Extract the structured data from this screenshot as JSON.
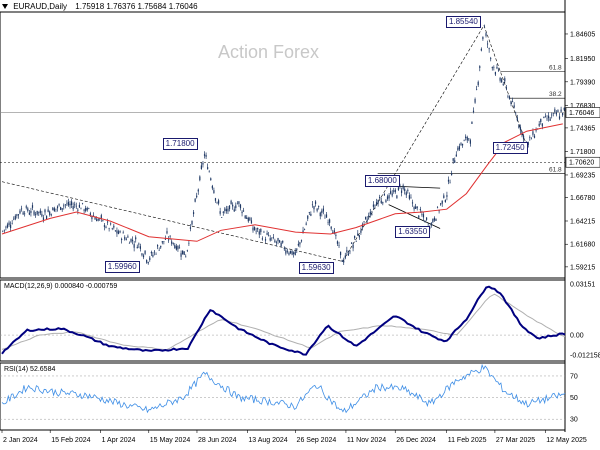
{
  "header": {
    "symbol": "EURAUD,Daily",
    "ohlc": "1.75918 1.76376 1.75684 1.76046"
  },
  "watermark": "Action Forex",
  "colors": {
    "candle": "#1f3864",
    "ma": "#e03131",
    "macd": "#000080",
    "signal": "#b0b0b0",
    "rsi": "#3e8ee6",
    "trend": "#000000"
  },
  "chart_data": [
    {
      "type": "line",
      "panel": "price",
      "ylim": [
        1.58,
        1.87
      ],
      "y_ticks": [
        "1.84605",
        "1.81950",
        "1.79390",
        "1.76830",
        "1.74365",
        "1.71800",
        "1.69235",
        "1.66780",
        "1.64215",
        "1.61680",
        "1.59215"
      ],
      "current_price_label": "1.76046",
      "level_label": "1.70620",
      "fib_labels": [
        "61.8",
        "38.2",
        "61.8"
      ],
      "annotations": [
        {
          "label": "1.85540",
          "date": "2025-03-17",
          "value": 1.8554
        },
        {
          "label": "1.71800",
          "date": "2024-07-05",
          "value": 1.718
        },
        {
          "label": "1.68000",
          "date": "2025-01-02",
          "value": 1.68
        },
        {
          "label": "1.72450",
          "date": "2025-04-25",
          "value": 1.7245
        },
        {
          "label": "1.63550",
          "date": "2025-01-27",
          "value": 1.6355
        },
        {
          "label": "1.59960",
          "date": "2024-05-15",
          "value": 1.5996
        },
        {
          "label": "1.59630",
          "date": "2024-11-08",
          "value": 1.5963
        }
      ],
      "close_path": [
        [
          "2024-01-02",
          1.63
        ],
        [
          "2024-01-20",
          1.655
        ],
        [
          "2024-02-10",
          1.65
        ],
        [
          "2024-02-28",
          1.66
        ],
        [
          "2024-03-15",
          1.658
        ],
        [
          "2024-04-01",
          1.642
        ],
        [
          "2024-04-18",
          1.628
        ],
        [
          "2024-05-05",
          1.618
        ],
        [
          "2024-05-15",
          1.6
        ],
        [
          "2024-06-01",
          1.625
        ],
        [
          "2024-06-18",
          1.605
        ],
        [
          "2024-07-05",
          1.715
        ],
        [
          "2024-07-20",
          1.648
        ],
        [
          "2024-08-05",
          1.662
        ],
        [
          "2024-08-20",
          1.632
        ],
        [
          "2024-09-10",
          1.618
        ],
        [
          "2024-09-26",
          1.605
        ],
        [
          "2024-10-12",
          1.66
        ],
        [
          "2024-10-28",
          1.642
        ],
        [
          "2024-11-08",
          1.598
        ],
        [
          "2024-11-25",
          1.632
        ],
        [
          "2024-12-10",
          1.665
        ],
        [
          "2024-12-26",
          1.672
        ],
        [
          "2025-01-02",
          1.68
        ],
        [
          "2025-01-14",
          1.655
        ],
        [
          "2025-01-27",
          1.637
        ],
        [
          "2025-02-11",
          1.672
        ],
        [
          "2025-02-20",
          1.72
        ],
        [
          "2025-03-05",
          1.735
        ],
        [
          "2025-03-12",
          1.8
        ],
        [
          "2025-03-17",
          1.855
        ],
        [
          "2025-03-24",
          1.815
        ],
        [
          "2025-04-05",
          1.79
        ],
        [
          "2025-04-15",
          1.76
        ],
        [
          "2025-04-25",
          1.724
        ],
        [
          "2025-05-08",
          1.75
        ],
        [
          "2025-05-22",
          1.758
        ],
        [
          "2025-05-28",
          1.7605
        ]
      ],
      "ma_path": [
        [
          "2024-01-02",
          1.628
        ],
        [
          "2024-02-15",
          1.645
        ],
        [
          "2024-03-10",
          1.652
        ],
        [
          "2024-04-10",
          1.642
        ],
        [
          "2024-05-15",
          1.625
        ],
        [
          "2024-06-28",
          1.62
        ],
        [
          "2024-07-20",
          1.632
        ],
        [
          "2024-08-20",
          1.638
        ],
        [
          "2024-09-26",
          1.63
        ],
        [
          "2024-10-28",
          1.628
        ],
        [
          "2024-11-20",
          1.635
        ],
        [
          "2024-12-26",
          1.65
        ],
        [
          "2025-01-20",
          1.652
        ],
        [
          "2025-02-11",
          1.655
        ],
        [
          "2025-03-01",
          1.672
        ],
        [
          "2025-03-20",
          1.703
        ],
        [
          "2025-04-05",
          1.728
        ],
        [
          "2025-04-25",
          1.74
        ],
        [
          "2025-05-28",
          1.748
        ]
      ]
    },
    {
      "type": "line",
      "panel": "macd",
      "title": "MACD(12,26,9) 0.000840 -0.000759",
      "ylim": [
        -0.016,
        0.034
      ],
      "y_ticks": [
        "0.03151",
        "0.00",
        "-0.012158"
      ],
      "series": [
        {
          "values": [
            [
              "2024-01-02",
              -0.011
            ],
            [
              "2024-01-25",
              0.003
            ],
            [
              "2024-02-25",
              0.004
            ],
            [
              "2024-03-15",
              0.0
            ],
            [
              "2024-04-10",
              -0.007
            ],
            [
              "2024-05-15",
              -0.01
            ],
            [
              "2024-06-20",
              -0.008
            ],
            [
              "2024-07-10",
              0.016
            ],
            [
              "2024-08-05",
              0.004
            ],
            [
              "2024-09-05",
              -0.006
            ],
            [
              "2024-10-05",
              -0.012
            ],
            [
              "2024-10-25",
              0.006
            ],
            [
              "2024-11-20",
              -0.007
            ],
            [
              "2024-12-26",
              0.012
            ],
            [
              "2025-01-20",
              0.002
            ],
            [
              "2025-02-10",
              -0.004
            ],
            [
              "2025-03-01",
              0.01
            ],
            [
              "2025-03-20",
              0.031
            ],
            [
              "2025-04-01",
              0.026
            ],
            [
              "2025-04-20",
              0.006
            ],
            [
              "2025-05-05",
              -0.002
            ],
            [
              "2025-05-28",
              0.00084
            ]
          ]
        },
        {
          "values": [
            [
              "2024-01-02",
              -0.009
            ],
            [
              "2024-02-05",
              0.0
            ],
            [
              "2024-03-10",
              0.002
            ],
            [
              "2024-04-20",
              -0.006
            ],
            [
              "2024-06-01",
              -0.009
            ],
            [
              "2024-07-20",
              0.01
            ],
            [
              "2024-08-20",
              0.004
            ],
            [
              "2024-10-10",
              -0.008
            ],
            [
              "2024-11-05",
              0.002
            ],
            [
              "2024-12-15",
              0.006
            ],
            [
              "2025-01-25",
              0.003
            ],
            [
              "2025-02-20",
              0.0
            ],
            [
              "2025-03-25",
              0.026
            ],
            [
              "2025-04-25",
              0.012
            ],
            [
              "2025-05-28",
              -0.00076
            ]
          ]
        }
      ]
    },
    {
      "type": "line",
      "panel": "rsi",
      "title": "RSI(14) 52.6584",
      "ylim": [
        20,
        82
      ],
      "y_ticks": [
        "70",
        "50",
        "30"
      ],
      "series": [
        {
          "values": [
            [
              "2024-01-02",
              44
            ],
            [
              "2024-01-25",
              60
            ],
            [
              "2024-02-20",
              55
            ],
            [
              "2024-03-20",
              52
            ],
            [
              "2024-04-20",
              44
            ],
            [
              "2024-05-15",
              38
            ],
            [
              "2024-06-15",
              50
            ],
            [
              "2024-07-05",
              72
            ],
            [
              "2024-08-05",
              50
            ],
            [
              "2024-09-05",
              46
            ],
            [
              "2024-09-26",
              42
            ],
            [
              "2024-10-15",
              62
            ],
            [
              "2024-11-08",
              36
            ],
            [
              "2024-12-10",
              60
            ],
            [
              "2025-01-02",
              58
            ],
            [
              "2025-01-27",
              44
            ],
            [
              "2025-02-20",
              66
            ],
            [
              "2025-03-17",
              78
            ],
            [
              "2025-04-05",
              56
            ],
            [
              "2025-04-25",
              44
            ],
            [
              "2025-05-28",
              52.66
            ]
          ]
        }
      ]
    }
  ],
  "x_ticks": [
    "2 Jan 2024",
    "15 Feb 2024",
    "1 Apr 2024",
    "15 May 2024",
    "28 Jun 2024",
    "13 Aug 2024",
    "26 Sep 2024",
    "11 Nov 2024",
    "26 Dec 2024",
    "11 Feb 2025",
    "27 Mar 2025",
    "12 May 2025"
  ]
}
